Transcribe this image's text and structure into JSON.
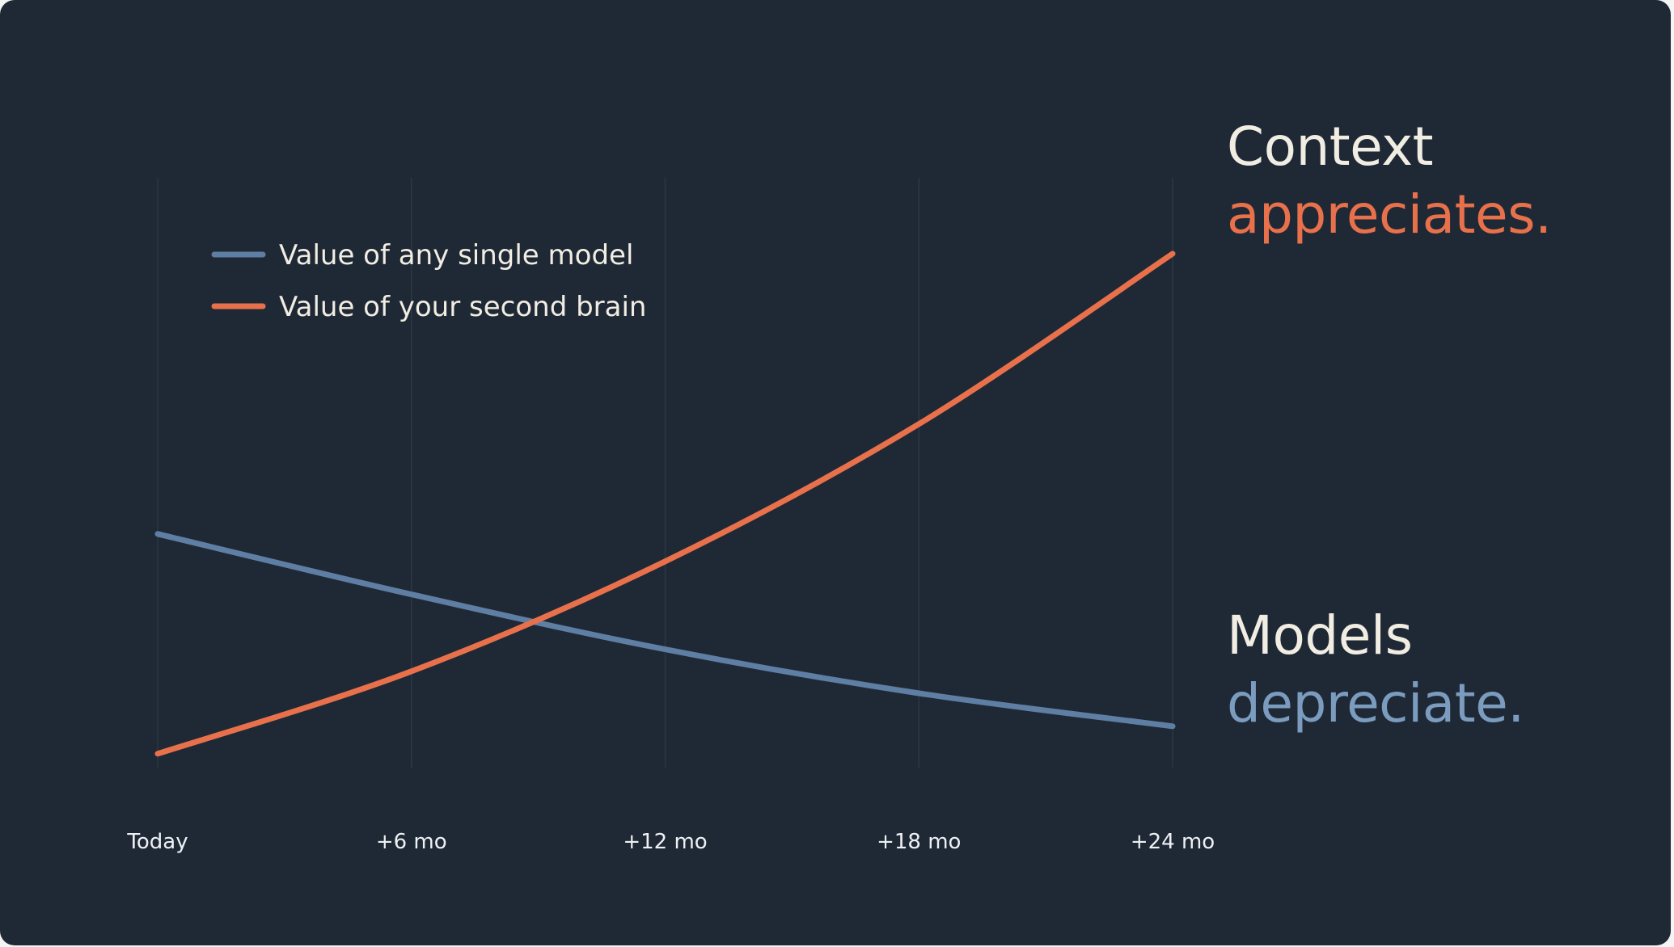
{
  "chart_data": {
    "type": "line",
    "x": [
      "Today",
      "+6 mo",
      "+12 mo",
      "+18 mo",
      "+24 mo"
    ],
    "ylim": [
      0,
      100
    ],
    "series": [
      {
        "name": "Value of any single  model",
        "color": "#5f7ea3",
        "values": [
          44,
          33,
          23,
          15,
          9
        ]
      },
      {
        "name": "Value of your second brain",
        "color": "#e8714c",
        "values": [
          4,
          19,
          39,
          64,
          95
        ]
      }
    ],
    "grid": "vertical",
    "legend": "top-left",
    "xlabel": "",
    "ylabel": ""
  },
  "callouts": {
    "context": {
      "line1": "Context",
      "line2": "appreciates."
    },
    "models": {
      "line1": "Models",
      "line2": "depreciate."
    }
  }
}
